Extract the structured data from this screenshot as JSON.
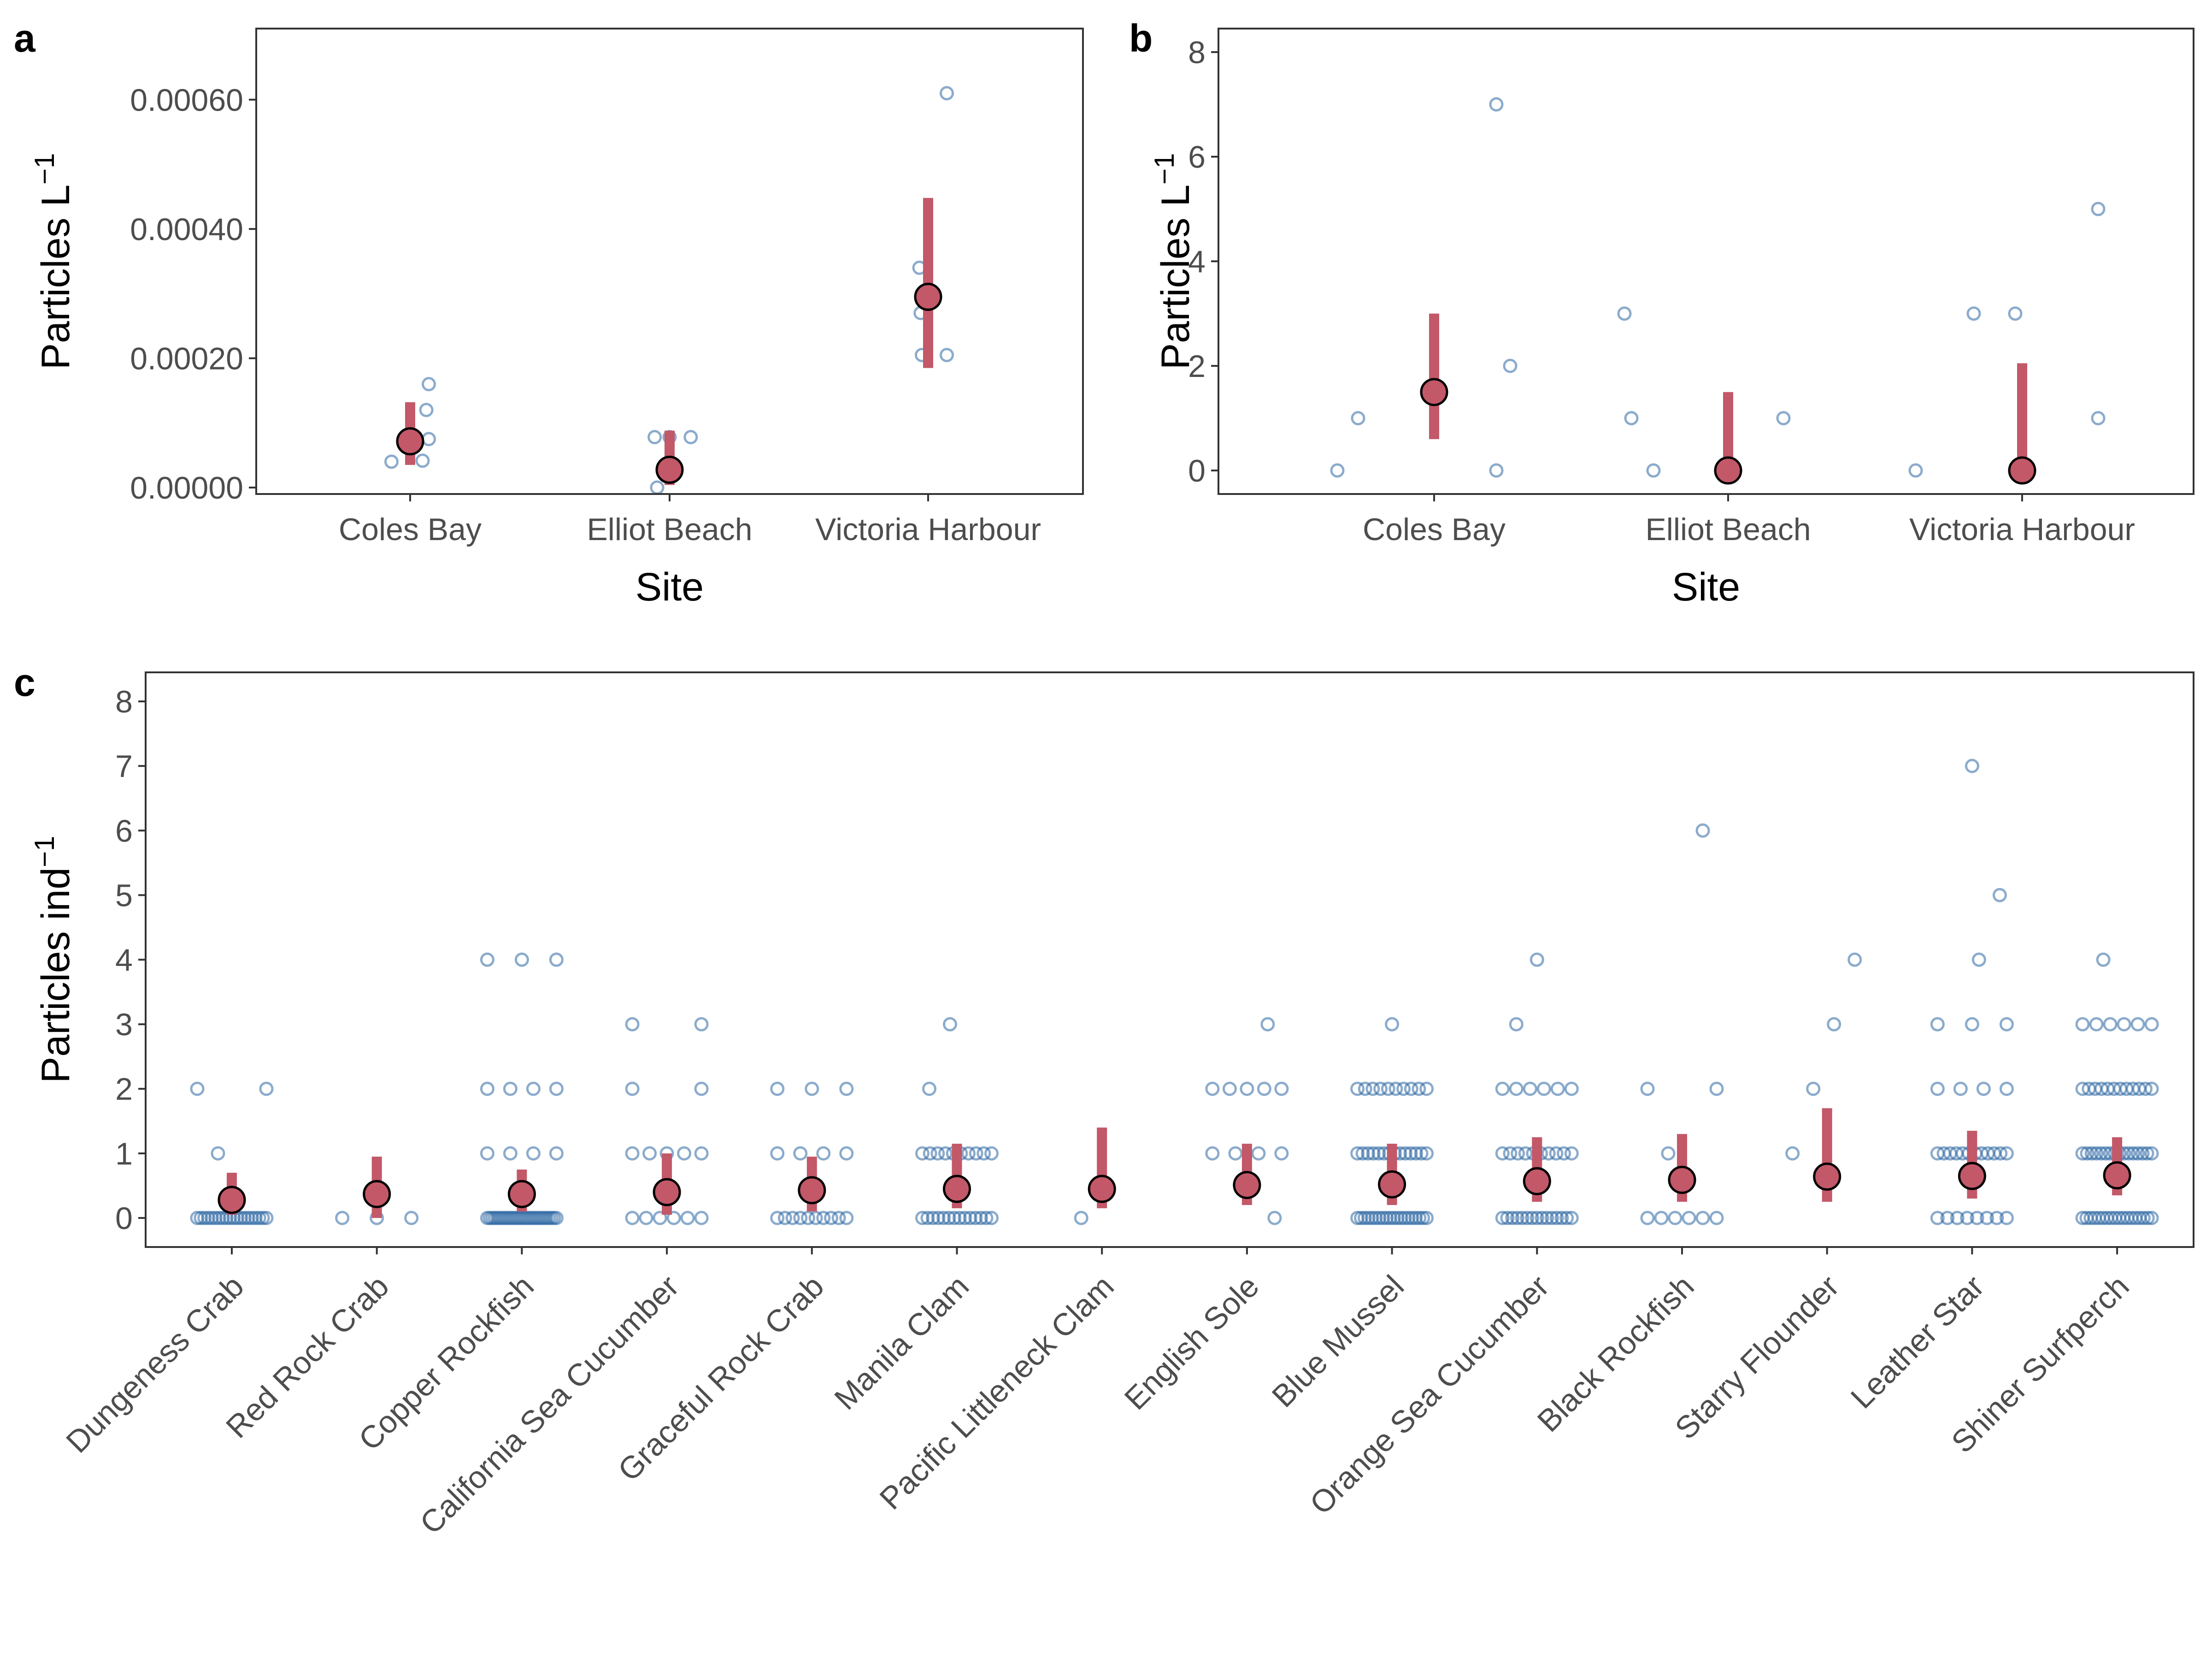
{
  "colors": {
    "raw_points": "#2b66a3",
    "mean_point": "#c25868",
    "interval": "#c25868",
    "frame": "#333333"
  },
  "chart_data": [
    {
      "panel": "a",
      "type": "scatter",
      "xlabel": "Site",
      "ylabel_main": "Particles L",
      "ylabel_sup": "−1",
      "ylim": [
        -1e-05,
        0.00071
      ],
      "yticks": [
        0,
        0.0002,
        0.0004,
        0.0006
      ],
      "ytick_labels": [
        "0.00000",
        "0.00020",
        "0.00040",
        "0.00060"
      ],
      "categories": [
        "Coles Bay",
        "Elliot Beach",
        "Victoria Harbour"
      ],
      "points": [
        [
          4e-05,
          4.15e-05,
          7.5e-05,
          0.00012,
          0.00016
        ],
        [
          0.0,
          7.8e-05,
          7.8e-05,
          7.8e-05,
          4e-05
        ],
        [
          0.00061,
          0.00034,
          0.00027,
          0.000205,
          0.000205
        ]
      ],
      "point_offsets": [
        [
          -0.45,
          0.3,
          0.45,
          0.39,
          0.45
        ],
        [
          -0.3,
          -0.36,
          0.0,
          0.51,
          0.0
        ],
        [
          0.45,
          -0.21,
          -0.18,
          -0.15,
          0.45
        ]
      ],
      "mean": [
        7.15e-05,
        2.75e-05,
        0.000295
      ],
      "interval": [
        [
          3.5e-05,
          0.000132
        ],
        [
          4e-06,
          8.8e-05
        ],
        [
          0.000185,
          0.000448
        ]
      ]
    },
    {
      "panel": "b",
      "type": "scatter",
      "xlabel": "Site",
      "ylabel_main": "Particles L",
      "ylabel_sup": "−1",
      "ylim": [
        -0.45,
        8.45
      ],
      "yticks": [
        0,
        2,
        4,
        6,
        8
      ],
      "ytick_labels": [
        "0",
        "2",
        "4",
        "6",
        "8"
      ],
      "categories": [
        "Coles Bay",
        "Elliot Beach",
        "Victoria Harbour"
      ],
      "points": [
        [
          0,
          1,
          7,
          0,
          2
        ],
        [
          3,
          1,
          0,
          0,
          1
        ],
        [
          0,
          3,
          3,
          5,
          1
        ]
      ],
      "point_offsets": [
        [
          -0.7,
          -0.55,
          0.45,
          0.45,
          0.55
        ],
        [
          -0.75,
          -0.7,
          -0.54,
          0.05,
          0.4
        ],
        [
          -0.77,
          -0.35,
          -0.05,
          0.55,
          0.55
        ]
      ],
      "mean": [
        1.5,
        0.0,
        0.0
      ],
      "interval": [
        [
          0.6,
          3.0
        ],
        [
          0.0,
          1.5
        ],
        [
          0.0,
          2.05
        ]
      ]
    },
    {
      "panel": "c",
      "type": "scatter",
      "xlabel": "",
      "ylabel_main": "Particles ind",
      "ylabel_sup": "−1",
      "ylim": [
        -0.45,
        8.45
      ],
      "yticks": [
        0,
        1,
        2,
        3,
        4,
        5,
        6,
        7,
        8
      ],
      "ytick_labels": [
        "0",
        "1",
        "2",
        "3",
        "4",
        "5",
        "6",
        "7",
        "8"
      ],
      "categories": [
        "Dungeness Crab",
        "Red Rock Crab",
        "Copper Rockfish",
        "California Sea Cucumber",
        "Graceful Rock Crab",
        "Manila Clam",
        "Pacific Littleneck Clam",
        "English Sole",
        "Blue Mussel",
        "Orange Sea Cucumber",
        "Black Rockfish",
        "Starry Flounder",
        "Leather Star",
        "Shiner Surfperch"
      ],
      "mean": [
        0.28,
        0.37,
        0.37,
        0.4,
        0.43,
        0.45,
        0.45,
        0.51,
        0.52,
        0.57,
        0.59,
        0.64,
        0.65,
        0.66
      ],
      "interval": [
        [
          0.05,
          0.7
        ],
        [
          0.0,
          0.95
        ],
        [
          0.1,
          0.75
        ],
        [
          0.05,
          1.0
        ],
        [
          0.1,
          0.95
        ],
        [
          0.15,
          1.15
        ],
        [
          0.15,
          1.4
        ],
        [
          0.2,
          1.15
        ],
        [
          0.2,
          1.15
        ],
        [
          0.25,
          1.25
        ],
        [
          0.25,
          1.3
        ],
        [
          0.25,
          1.7
        ],
        [
          0.3,
          1.35
        ],
        [
          0.35,
          1.25
        ]
      ],
      "value_counts": [
        {
          "0": 20,
          "1": 1,
          "2": 2
        },
        {
          "0": 3
        },
        {
          "0": 28,
          "1": 4,
          "2": 4,
          "4": 3
        },
        {
          "0": 6,
          "1": 5,
          "2": 2,
          "3": 2
        },
        {
          "0": 10,
          "1": 4,
          "2": 3
        },
        {
          "0": 14,
          "1": 10,
          "2": 1,
          "3": 1
        },
        {
          "0": 1
        },
        {
          "0": 1,
          "1": 4,
          "2": 5,
          "3": 1
        },
        {
          "0": 20,
          "1": 14,
          "2": 10,
          "3": 1
        },
        {
          "0": 15,
          "1": 10,
          "2": 6,
          "3": 1,
          "4": 1
        },
        {
          "0": 6,
          "1": 1,
          "2": 2,
          "6": 1
        },
        {
          "1": 1,
          "2": 1,
          "3": 1,
          "4": 1
        },
        {
          "0": 8,
          "1": 12,
          "2": 4,
          "3": 3,
          "4": 1,
          "5": 1,
          "7": 1
        },
        {
          "0": 18,
          "1": 16,
          "2": 12,
          "3": 6,
          "4": 1
        }
      ]
    }
  ]
}
